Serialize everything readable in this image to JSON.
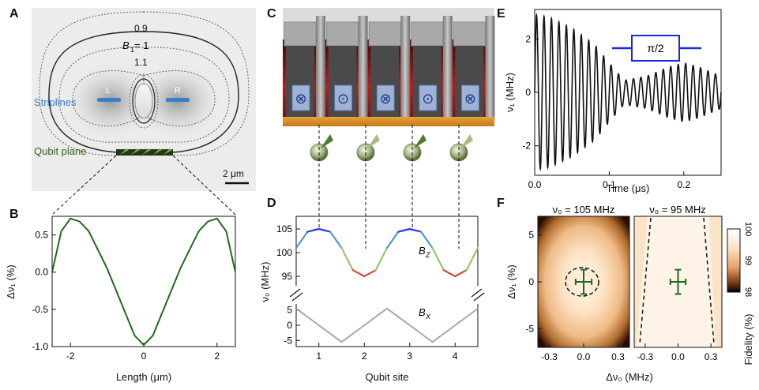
{
  "panels": {
    "a": "A",
    "b": "B",
    "c": "C",
    "d": "D",
    "e": "E",
    "f": "F"
  },
  "panel_a": {
    "contour_labels": [
      "0.9",
      "B",
      "1",
      " = 1",
      "1.1"
    ],
    "electrode_left": "L",
    "electrode_right": "R",
    "striplines_label": "Striplines",
    "qubit_plane_label": "Qubit plane",
    "scale_bar_label": "2 μm",
    "colors": {
      "striplines": "#3a7dc9",
      "qubit_plane": "#3d5a1e"
    }
  },
  "panel_c": {
    "wire_symbols": [
      "⊗",
      "⊙",
      "⊗",
      "⊙",
      "⊗"
    ]
  },
  "chart_data": [
    {
      "id": "B",
      "type": "line",
      "xlabel": "Length (μm)",
      "ylabel": "Δν₁ (%)",
      "xlim": [
        -2.5,
        2.5
      ],
      "ylim": [
        -1.0,
        0.75
      ],
      "xticks": [
        "-2",
        "0",
        "2"
      ],
      "yticks": [
        "0.5",
        "0.0",
        "-0.5",
        "-1.0"
      ],
      "series": [
        {
          "color": "#1f6a1a",
          "x": [
            -2.5,
            -2.25,
            -2.0,
            -1.75,
            -1.5,
            -1.25,
            -1.0,
            -0.75,
            -0.5,
            -0.25,
            0.0,
            0.25,
            0.5,
            0.75,
            1.0,
            1.25,
            1.5,
            1.75,
            2.0,
            2.25,
            2.5
          ],
          "y": [
            0.0,
            0.55,
            0.72,
            0.68,
            0.55,
            0.3,
            0.05,
            -0.25,
            -0.55,
            -0.85,
            -0.98,
            -0.85,
            -0.55,
            -0.25,
            0.05,
            0.3,
            0.55,
            0.68,
            0.72,
            0.55,
            0.0
          ]
        }
      ]
    },
    {
      "id": "D",
      "type": "line",
      "xlabel": "Qubit site",
      "ylabel": "ν₀ (MHz)",
      "xlim": [
        0.5,
        4.5
      ],
      "xticks": [
        "1",
        "2",
        "3",
        "4"
      ],
      "upper": {
        "ylim": [
          93,
          107
        ],
        "yticks": [
          "105",
          "100",
          "95"
        ],
        "label_main": "B",
        "label_sub": "Z",
        "x": [
          0.5,
          0.75,
          1.0,
          1.25,
          1.5,
          1.75,
          2.0,
          2.25,
          2.5,
          2.75,
          3.0,
          3.25,
          3.5,
          3.75,
          4.0,
          4.25,
          4.5
        ],
        "y": [
          101,
          104.4,
          105,
          104.4,
          101,
          96.3,
          95,
          96.3,
          101,
          104.4,
          105,
          104.4,
          101,
          96.3,
          95,
          96.3,
          101
        ]
      },
      "lower": {
        "ylim": [
          -7,
          7
        ],
        "yticks": [
          "5",
          "0",
          "-5"
        ],
        "label_main": "B",
        "label_sub": "X",
        "x": [
          0.5,
          1.0,
          1.5,
          2.0,
          2.5,
          3.0,
          3.5,
          4.0,
          4.5
        ],
        "y": [
          5.5,
          0.0,
          -5.5,
          0.0,
          5.5,
          0.0,
          -5.5,
          0.0,
          5.5
        ]
      }
    },
    {
      "id": "E",
      "type": "line",
      "xlabel": "Time (μs)",
      "ylabel": "ν₁ (MHz)",
      "xlim": [
        0,
        0.25
      ],
      "ylim": [
        -3.1,
        3.1
      ],
      "xticks": [
        "0.0",
        "0.1",
        "0.2"
      ],
      "yticks": [
        "2",
        "0",
        "-2"
      ],
      "pulse_label": "π/2",
      "oscillation_freq_MHz": 100,
      "envelope": {
        "t": [
          0,
          0.02,
          0.05,
          0.08,
          0.1,
          0.12,
          0.15,
          0.18,
          0.2,
          0.22,
          0.25
        ],
        "amp": [
          2.9,
          2.8,
          2.4,
          1.8,
          1.1,
          0.45,
          0.6,
          0.95,
          1.1,
          0.95,
          0.6
        ]
      }
    },
    {
      "id": "F",
      "type": "heatmap",
      "xlabel": "Δν₀ (MHz)",
      "ylabel": "Δν₁ (%)",
      "xticks": [
        "-0.3",
        "0.0",
        "0.3"
      ],
      "yticks": [
        "5",
        "0",
        "-5"
      ],
      "xlim": [
        -0.4,
        0.4
      ],
      "ylim": [
        -7,
        7
      ],
      "titles": [
        "ν₀ = 105 MHz",
        "ν₀ = 95 MHz"
      ],
      "colorbar": {
        "label": "Fidelity (%)",
        "ticks": [
          "100",
          "99",
          "98"
        ]
      },
      "marker": {
        "x": 0.0,
        "y": 0.0,
        "xerr": 0.07,
        "yerr": 1.3
      }
    }
  ]
}
